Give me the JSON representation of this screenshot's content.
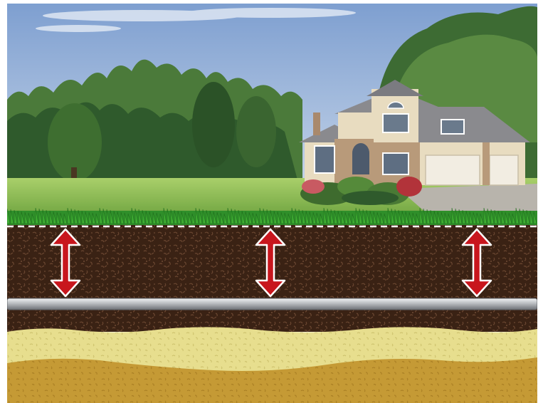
{
  "colors": {
    "sky_top": "#7e9fd0",
    "sky_bottom": "#cfdcec",
    "tree_dark": "#2f5a2c",
    "tree_mid": "#4b7a3a",
    "tree_light": "#6f9a4e",
    "lawn": "#8fbf5a",
    "grass": "#2f8f2a",
    "soil": "#3a2214",
    "soil_speck": "#6a4630",
    "sand_light": "#e7de8e",
    "sand_dark": "#c59a35",
    "pipe": "#b9bcc0",
    "arrow": "#c8161d",
    "arrow_outline": "#ffffff",
    "depth_line": "#ffffff",
    "house_wall": "#e8dcc0",
    "house_stone": "#b89a7a",
    "house_roof": "#8a8a8e"
  },
  "scene": {
    "depth_arrows": {
      "count": 3,
      "direction": "bidirectional"
    },
    "pipe": {
      "orientation": "horizontal"
    },
    "soil_layers": [
      "topsoil",
      "light-sand",
      "dark-sand"
    ]
  }
}
